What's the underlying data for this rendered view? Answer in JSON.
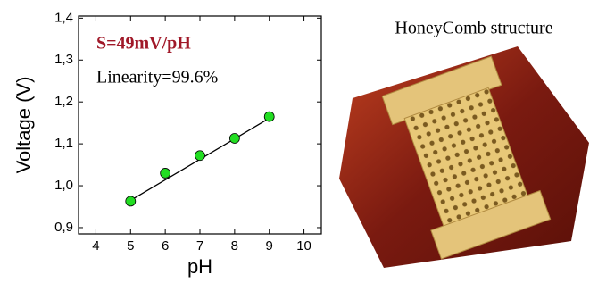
{
  "chart_data": {
    "type": "scatter",
    "x_label": "pH",
    "y_label": "Voltage (V)",
    "annotations": [
      "S=49mV/pH",
      "Linearity=99.6%"
    ],
    "side_title": "HoneyComb structure",
    "x": [
      5,
      6,
      7,
      8,
      9
    ],
    "values": [
      0.963,
      1.03,
      1.072,
      1.113,
      1.165
    ],
    "color": "#22dd22",
    "fit": {
      "x": [
        5,
        9
      ],
      "values": [
        0.965,
        1.161
      ],
      "color": "#000000"
    },
    "xlim": [
      3.5,
      10.5
    ],
    "xticks": [
      4,
      5,
      6,
      7,
      8,
      9,
      10
    ],
    "ylim": [
      0.885,
      1.405
    ],
    "yticks": [
      {
        "value": 0.9,
        "label": "0,9"
      },
      {
        "value": 1.0,
        "label": "1,0"
      },
      {
        "value": 1.1,
        "label": "1,1"
      },
      {
        "value": 1.2,
        "label": "1,2"
      },
      {
        "value": 1.3,
        "label": "1,3"
      },
      {
        "value": 1.4,
        "label": "1,4"
      }
    ]
  }
}
